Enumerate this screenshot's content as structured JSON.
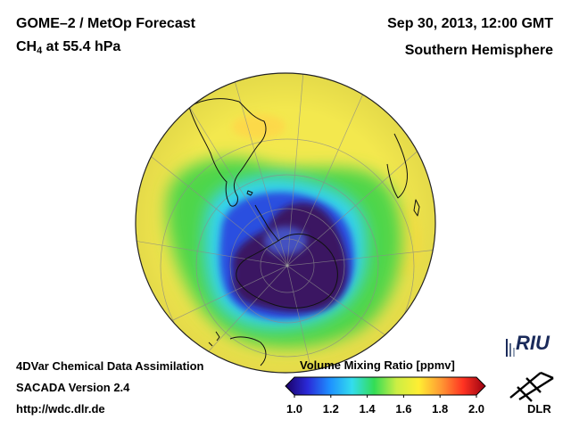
{
  "header": {
    "product": "GOME–2 / MetOp Forecast",
    "species_main": "CH",
    "species_sub": "4",
    "species_rest": " at 55.4 hPa",
    "datetime": "Sep 30, 2013, 12:00 GMT",
    "hemisphere": "Southern Hemisphere"
  },
  "footer": {
    "line1": "4DVar Chemical Data Assimilation",
    "line2": "SACADA Version 2.4",
    "line3": "http://wdc.dlr.de"
  },
  "colorbar": {
    "title": "Volume Mixing Ratio [ppmv]",
    "min": 1.0,
    "max": 2.0,
    "ticks": [
      "1.0",
      "1.2",
      "1.4",
      "1.6",
      "1.8",
      "2.0"
    ],
    "tick_values": [
      1.0,
      1.2,
      1.4,
      1.6,
      1.8,
      2.0
    ],
    "stops": [
      "#1a0066",
      "#2a2ad8",
      "#1e90ff",
      "#33ddee",
      "#33dd55",
      "#ccee44",
      "#ffee33",
      "#ff9933",
      "#ff3322",
      "#990011"
    ]
  },
  "logos": {
    "riu": "RIU",
    "dlr": "DLR"
  },
  "colors": {
    "yellow": "#f3e84e",
    "green": "#4fd64a",
    "cyan": "#35d3ee",
    "blue": "#2a4fe0",
    "vortex": "#3a1262",
    "land": "#111111"
  }
}
